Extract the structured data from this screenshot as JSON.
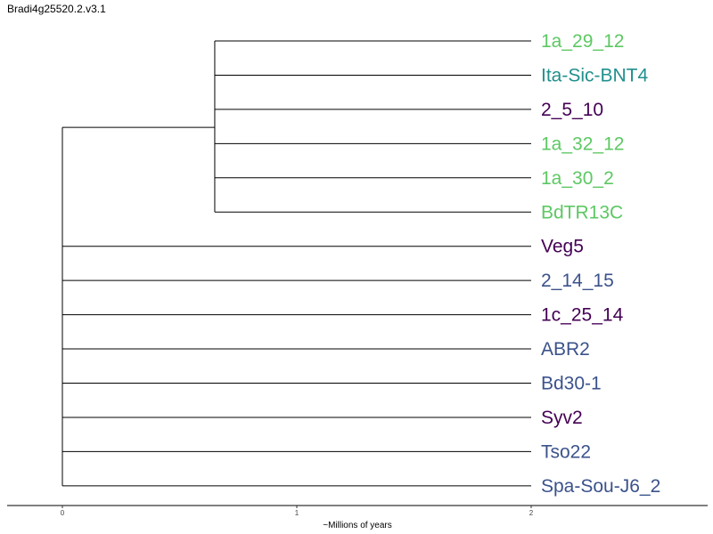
{
  "title": "Bradi4g25520.2.v3.1",
  "chart_data": {
    "type": "dendrogram",
    "xlabel": "~Millions of years",
    "ticks": [
      {
        "value": 0,
        "label": "0"
      },
      {
        "value": 1,
        "label": "1"
      },
      {
        "value": 2,
        "label": "2"
      }
    ],
    "colors": {
      "light_green": "#5dc863",
      "teal": "#21908d",
      "dark_purple": "#440154",
      "blue": "#3b528b"
    },
    "leaves": [
      {
        "name": "1a_29_12",
        "color": "#5dc863"
      },
      {
        "name": "Ita-Sic-BNT4",
        "color": "#21908d"
      },
      {
        "name": "2_5_10",
        "color": "#440154"
      },
      {
        "name": "1a_32_12",
        "color": "#5dc863"
      },
      {
        "name": "1a_30_2",
        "color": "#5dc863"
      },
      {
        "name": "BdTR13C",
        "color": "#5dc863"
      },
      {
        "name": "Veg5",
        "color": "#440154"
      },
      {
        "name": "2_14_15",
        "color": "#3b528b"
      },
      {
        "name": "1c_25_14",
        "color": "#440154"
      },
      {
        "name": "ABR2",
        "color": "#3b528b"
      },
      {
        "name": "Bd30-1",
        "color": "#3b528b"
      },
      {
        "name": "Syv2",
        "color": "#440154"
      },
      {
        "name": "Tso22",
        "color": "#3b528b"
      },
      {
        "name": "Spa-Sou-J6_2",
        "color": "#3b528b"
      }
    ],
    "root_age": 0,
    "leaf_age": 2,
    "internal_nodes": [
      {
        "age": 0.65,
        "children_leaf_indices": [
          0,
          1,
          2,
          3,
          4,
          5
        ]
      }
    ]
  }
}
